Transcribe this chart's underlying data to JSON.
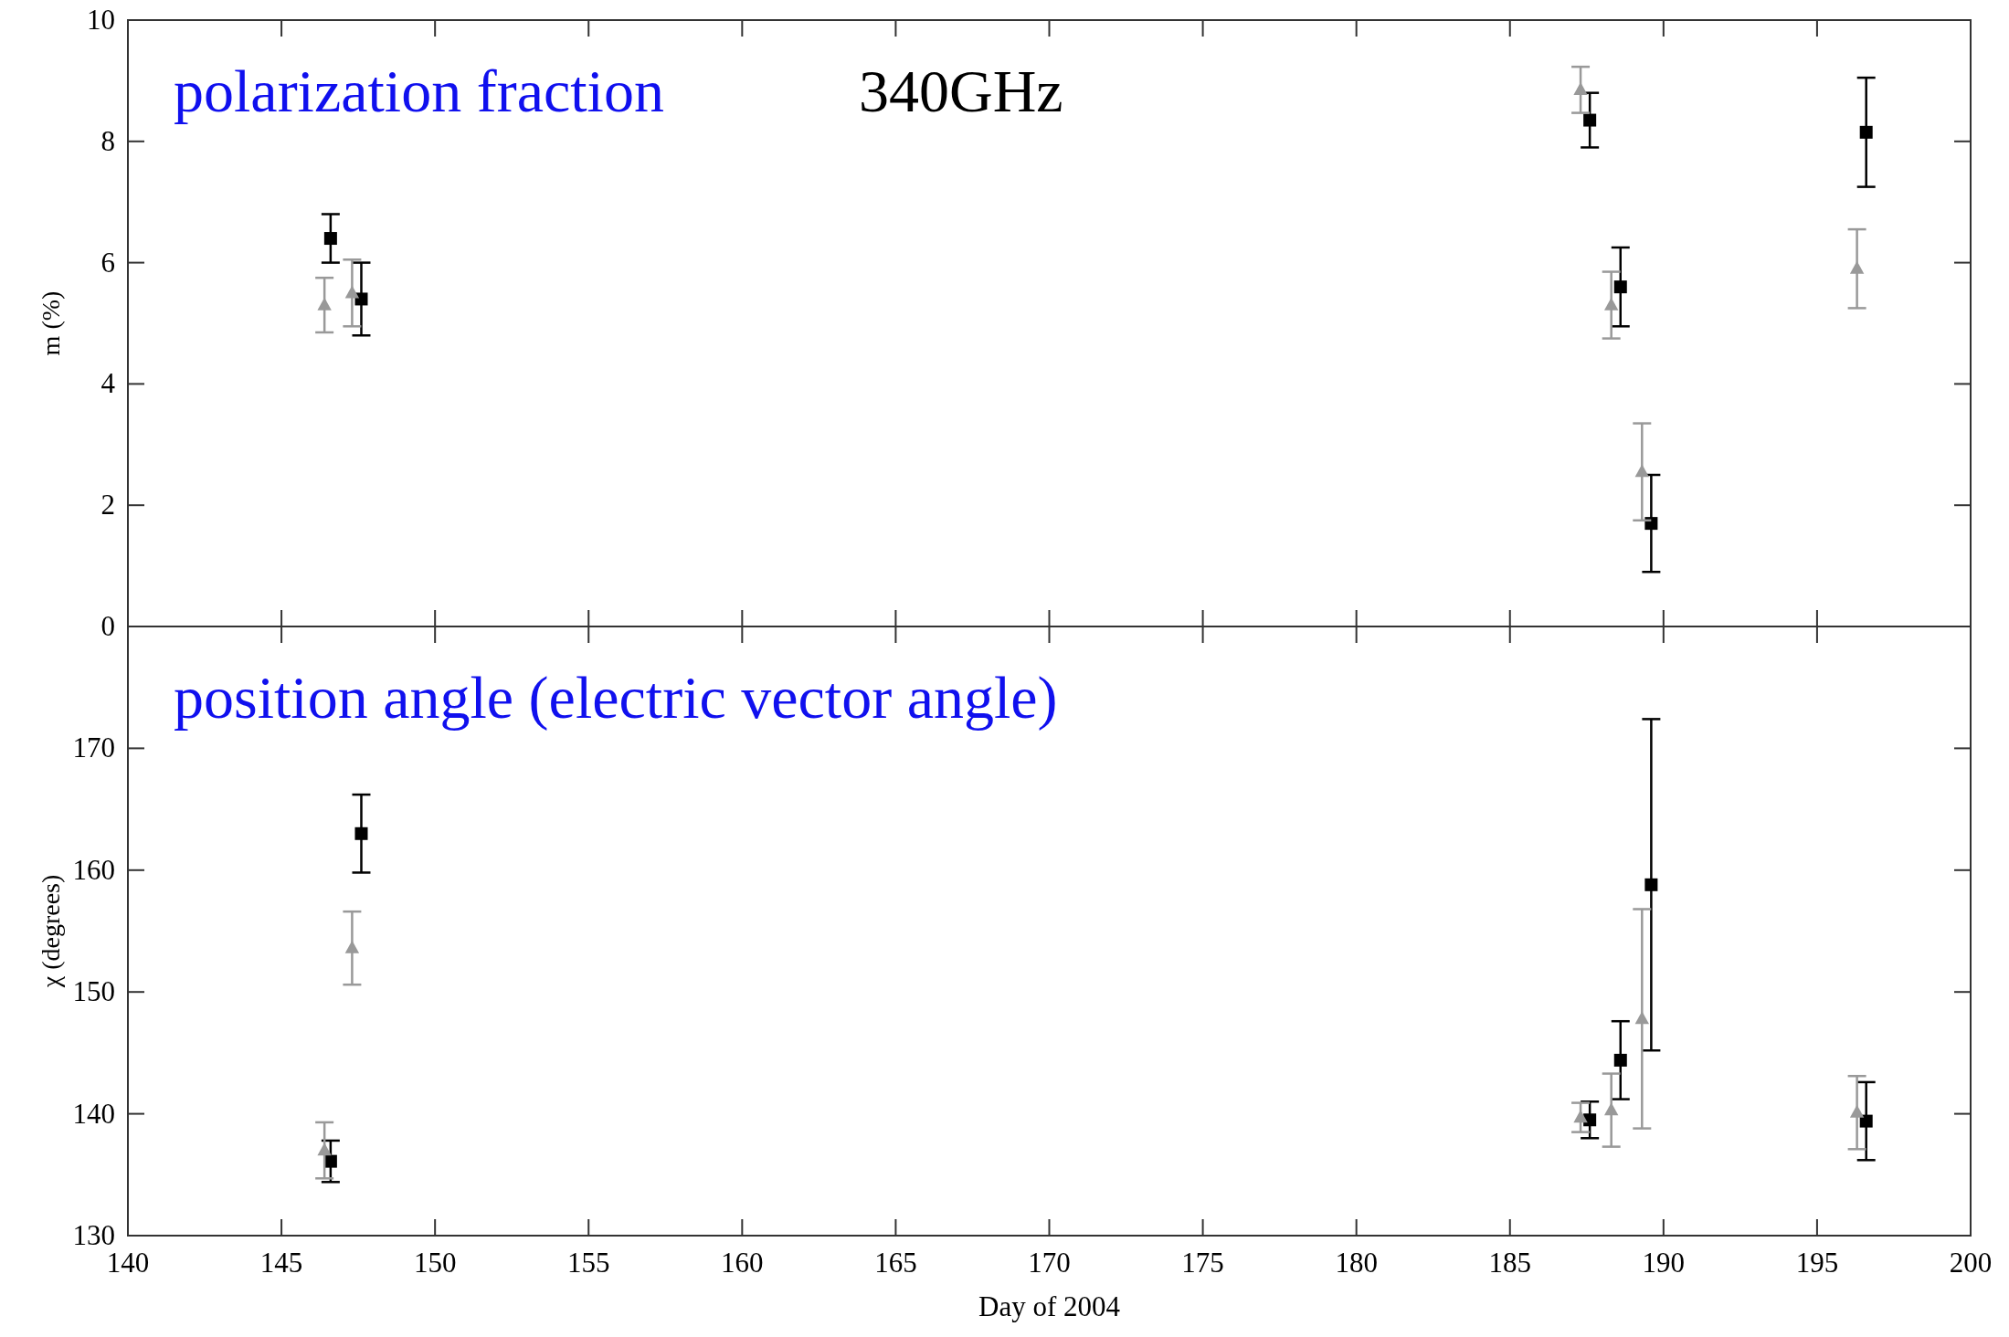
{
  "chart_data": [
    {
      "type": "scatter",
      "ylabel": "m (%)",
      "xlim": [
        140,
        200
      ],
      "xticks": [
        140,
        145,
        150,
        155,
        160,
        165,
        170,
        175,
        180,
        185,
        190,
        195,
        200
      ],
      "ylim": [
        0,
        10
      ],
      "yticks": [
        0,
        2,
        4,
        6,
        8,
        10
      ],
      "tick_labels": "y",
      "grid": false,
      "annotations": [
        "polarization fraction",
        "340GHz"
      ],
      "series": [
        {
          "color": "#000000",
          "marker": "square",
          "x": [
            146.6,
            147.6,
            187.6,
            188.6,
            189.6,
            196.6
          ],
          "values": [
            6.4,
            5.4,
            8.35,
            5.6,
            1.7,
            8.15
          ],
          "errors": [
            0.4,
            0.6,
            0.45,
            0.65,
            0.8,
            0.9
          ]
        },
        {
          "color": "#999999",
          "marker": "triangle",
          "x": [
            146.4,
            147.3,
            187.3,
            188.3,
            189.3,
            196.3
          ],
          "values": [
            5.3,
            5.5,
            8.85,
            5.3,
            2.55,
            5.9
          ],
          "errors": [
            0.45,
            0.55,
            0.38,
            0.55,
            0.8,
            0.65
          ]
        }
      ]
    },
    {
      "type": "scatter",
      "xlabel": "Day of 2004",
      "ylabel": "χ (degrees)",
      "xlim": [
        140,
        200
      ],
      "xticks": [
        140,
        145,
        150,
        155,
        160,
        165,
        170,
        175,
        180,
        185,
        190,
        195,
        200
      ],
      "ylim": [
        130,
        180
      ],
      "yticks": [
        130,
        140,
        150,
        160,
        170
      ],
      "grid": false,
      "annotations": [
        "position angle (electric vector angle)"
      ],
      "series": [
        {
          "color": "#000000",
          "marker": "square",
          "x": [
            146.6,
            147.6,
            187.6,
            188.6,
            189.6,
            196.6
          ],
          "values": [
            136.1,
            163,
            139.5,
            144.4,
            158.8,
            139.4
          ],
          "errors": [
            1.7,
            3.2,
            1.5,
            3.2,
            13.6,
            3.2
          ]
        },
        {
          "color": "#999999",
          "marker": "triangle",
          "x": [
            146.4,
            147.3,
            187.3,
            188.3,
            189.3,
            196.3
          ],
          "values": [
            137,
            153.6,
            139.7,
            140.3,
            147.8,
            140.1
          ],
          "errors": [
            2.3,
            3,
            1.2,
            3,
            9,
            3
          ]
        }
      ]
    }
  ]
}
